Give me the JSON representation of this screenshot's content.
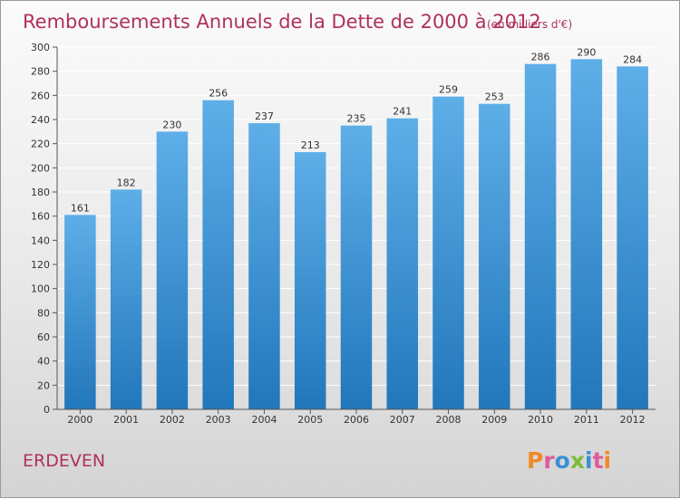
{
  "page": {
    "title": "Remboursements Annuels de la Dette de 2000 à 2012",
    "subtitle": "(en milliers d'€)",
    "location": "ERDEVEN",
    "brand": "Proxiti"
  },
  "colors": {
    "title": "#b0305f",
    "bar_top": "#5eaee8",
    "bar_bottom": "#2277bb",
    "grid": "#ffffff",
    "axis_text": "#333333",
    "brand_letters": [
      "#f08a24",
      "#e05a9a",
      "#3a8fd6",
      "#7dbb3a",
      "#3a8fd6",
      "#e05a9a",
      "#f08a24"
    ]
  },
  "chart_data": {
    "type": "bar",
    "categories": [
      "2000",
      "2001",
      "2002",
      "2003",
      "2004",
      "2005",
      "2006",
      "2007",
      "2008",
      "2009",
      "2010",
      "2011",
      "2012"
    ],
    "values": [
      161,
      182,
      230,
      256,
      237,
      213,
      235,
      241,
      259,
      253,
      286,
      290,
      284
    ],
    "title": "Remboursements Annuels de la Dette de 2000 à 2012",
    "subtitle": "(en milliers d'€)",
    "xlabel": "",
    "ylabel": "",
    "ylim": [
      0,
      300
    ],
    "yticks": [
      0,
      20,
      40,
      60,
      80,
      100,
      120,
      140,
      160,
      180,
      200,
      220,
      240,
      260,
      280,
      300
    ],
    "grid": true,
    "data_labels": true
  }
}
